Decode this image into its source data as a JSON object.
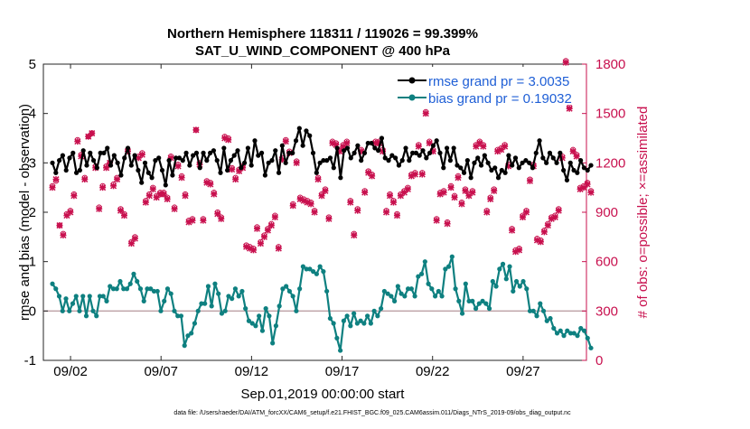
{
  "chart_data": {
    "type": "line",
    "title_line1": "Northern Hemisphere 118311 / 119026 = 99.399%",
    "title_line2": "SAT_U_WIND_COMPONENT @ 400 hPa",
    "ylabel_left": "rmse and bias (model - observation)",
    "ylabel_right": "# of obs: o=possible; ×=assimilated",
    "xlabel": "Sep.01,2019 00:00:00 start",
    "footnote": "data file: /Users/raeder/DAI/ATM_forcXX/CAM6_setup/f.e21.FHIST_BGC.f09_025.CAM6assim.011/Diags_NTrS_2019-09/obs_diag_output.nc",
    "x_range": [
      0.5,
      30.5
    ],
    "x_ticks": [
      2,
      7,
      12,
      17,
      22,
      27
    ],
    "x_tick_labels": [
      "09/02",
      "09/07",
      "09/12",
      "09/17",
      "09/22",
      "09/27"
    ],
    "y_left_range": [
      -1,
      5
    ],
    "y_left_ticks": [
      "-1",
      "0",
      "1",
      "2",
      "3",
      "4",
      "5"
    ],
    "y_right_range": [
      0,
      1800
    ],
    "y_right_ticks": [
      "0",
      "300",
      "600",
      "900",
      "1200",
      "1500",
      "1800"
    ],
    "zero_line": 0,
    "legend": {
      "position": "top-right",
      "entries": [
        "rmse grand pr = 3.0035",
        "bias grand pr = 0.19032"
      ]
    },
    "series": [
      {
        "name": "rmse",
        "axis": "left",
        "color": "#000000",
        "values": [
          3.0,
          2.8,
          3.05,
          3.15,
          2.85,
          3.1,
          3.2,
          2.8,
          2.85,
          3.25,
          2.95,
          3.2,
          3.05,
          2.9,
          3.2,
          3.2,
          3.3,
          2.95,
          3.15,
          3.0,
          2.75,
          3.1,
          3.3,
          2.95,
          3.15,
          2.85,
          2.6,
          3.0,
          2.8,
          2.7,
          3.05,
          3.1,
          2.85,
          2.55,
          3.05,
          2.75,
          3.1,
          3.1,
          3.05,
          3.2,
          2.95,
          3.15,
          3.2,
          2.9,
          3.2,
          3.05,
          3.2,
          3.25,
          3.05,
          2.8,
          3.3,
          2.85,
          3.05,
          3.15,
          3.25,
          2.9,
          3.0,
          3.3,
          2.95,
          3.45,
          3.15,
          3.2,
          2.75,
          3.0,
          3.05,
          3.25,
          2.8,
          3.35,
          3.0,
          3.2,
          3.2,
          3.45,
          3.7,
          3.35,
          3.65,
          3.55,
          3.2,
          2.8,
          3.0,
          3.05,
          3.05,
          3.1,
          2.9,
          3.3,
          2.7,
          3.25,
          3.3,
          3.1,
          3.2,
          3.35,
          3.05,
          3.2,
          3.4,
          3.4,
          3.3,
          3.25,
          3.5,
          3.1,
          3.05,
          3.15,
          3.1,
          2.95,
          3.05,
          3.3,
          3.05,
          3.2,
          3.2,
          3.15,
          3.25,
          3.1,
          3.2,
          3.35,
          3.45,
          3.2,
          2.9,
          3.3,
          3.05,
          3.3,
          2.95,
          2.9,
          2.8,
          3.05,
          2.7,
          3.0,
          3.1,
          2.95,
          3.15,
          3.0,
          2.85,
          2.9,
          2.7,
          2.85,
          2.8,
          3.15,
          2.95,
          3.1,
          2.9,
          3.0,
          3.05,
          3.0,
          2.9,
          3.2,
          3.45,
          3.1,
          3.0,
          3.2,
          3.1,
          3.0,
          3.2,
          2.85,
          2.65,
          3.0,
          2.85,
          2.8,
          3.05,
          2.9,
          2.85,
          2.95
        ]
      },
      {
        "name": "bias",
        "axis": "left",
        "color": "#0e8080",
        "values": [
          0.55,
          0.45,
          0.3,
          0.0,
          0.25,
          0.0,
          0.15,
          0.3,
          0.0,
          0.3,
          -0.1,
          0.3,
          0.0,
          -0.1,
          0.3,
          0.3,
          0.2,
          0.5,
          0.45,
          0.45,
          0.6,
          0.45,
          0.45,
          0.55,
          0.75,
          0.6,
          0.45,
          0.2,
          0.45,
          0.45,
          0.4,
          0.4,
          0.0,
          0.2,
          0.45,
          0.35,
          0.0,
          -0.1,
          -0.1,
          -0.7,
          -0.5,
          -0.45,
          -0.25,
          0.0,
          0.15,
          0.15,
          0.5,
          0.1,
          0.55,
          0.35,
          -0.05,
          0.0,
          0.3,
          0.25,
          0.45,
          0.3,
          0.4,
          0.05,
          -0.2,
          -0.25,
          -0.3,
          -0.1,
          -0.4,
          0.05,
          -0.1,
          -0.65,
          -0.3,
          0.1,
          0.45,
          0.5,
          0.4,
          0.3,
          0.0,
          0.45,
          0.9,
          0.85,
          0.85,
          0.8,
          0.75,
          0.9,
          0.8,
          0.4,
          -0.15,
          -0.25,
          -0.55,
          -0.8,
          -0.2,
          -0.1,
          -0.3,
          -0.05,
          -0.25,
          -0.2,
          -0.25,
          -0.1,
          -0.25,
          0.0,
          -0.1,
          0.05,
          0.4,
          0.35,
          0.3,
          0.2,
          0.5,
          0.35,
          0.3,
          0.45,
          0.45,
          0.3,
          0.7,
          0.75,
          1.0,
          0.55,
          0.45,
          0.3,
          0.4,
          0.3,
          0.85,
          0.9,
          1.1,
          0.45,
          0.2,
          -0.05,
          0.55,
          0.2,
          0.2,
          0.05,
          0.15,
          0.2,
          0.15,
          0.05,
          0.6,
          0.5,
          0.85,
          0.95,
          0.65,
          0.9,
          0.4,
          0.6,
          0.5,
          0.6,
          0.45,
          0.0,
          0.0,
          -0.1,
          0.15,
          0.0,
          -0.2,
          -0.15,
          -0.35,
          -0.45,
          -0.4,
          -0.5,
          -0.4,
          -0.45,
          -0.45,
          -0.5,
          -0.35,
          -0.4,
          -0.55,
          -0.75
        ]
      },
      {
        "name": "obs assimilated",
        "axis": "right",
        "color": "#c8104e",
        "values": [
          1050,
          1100,
          820,
          760,
          880,
          900,
          1000,
          1330,
          1240,
          1100,
          1360,
          1380,
          1170,
          920,
          1050,
          1170,
          1200,
          1060,
          1100,
          910,
          880,
          1270,
          710,
          740,
          1230,
          1250,
          960,
          1000,
          1040,
          990,
          1010,
          1010,
          980,
          1230,
          920,
          1180,
          1110,
          1000,
          840,
          850,
          1400,
          1190,
          850,
          1080,
          1070,
          1010,
          890,
          860,
          1350,
          1340,
          1160,
          1100,
          1150,
          1170,
          690,
          680,
          670,
          800,
          710,
          750,
          790,
          820,
          870,
          680,
          1220,
          1330,
          1260,
          940,
          1200,
          980,
          970,
          960,
          950,
          900,
          1100,
          1000,
          1030,
          860,
          1320,
          1310,
          1270,
          1300,
          1320,
          960,
          760,
          910,
          1270,
          1020,
          1140,
          1120,
          1320,
          1320,
          1270,
          900,
          1000,
          960,
          880,
          1000,
          1020,
          1040,
          1120,
          1130,
          1300,
          1130,
          1500,
          1320,
          1270,
          850,
          1010,
          1020,
          830,
          1050,
          990,
          1110,
          950,
          1030,
          1000,
          1020,
          1300,
          1320,
          1300,
          900,
          980,
          1030,
          1270,
          1280,
          1300,
          1180,
          790,
          660,
          670,
          870,
          900,
          1090,
          1180,
          730,
          720,
          780,
          820,
          860,
          870,
          910,
          1230,
          1810,
          1530,
          1270,
          1240,
          1040,
          1050,
          1070,
          1020
        ]
      },
      {
        "name": "obs possible",
        "axis": "right",
        "color": "#c8104e",
        "values": [
          1060,
          1090,
          820,
          770,
          890,
          910,
          1010,
          1340,
          1250,
          1110,
          1360,
          1380,
          1180,
          930,
          1060,
          1180,
          1200,
          1070,
          1110,
          920,
          890,
          1280,
          720,
          750,
          1240,
          1260,
          970,
          1010,
          1050,
          1000,
          1020,
          1020,
          990,
          1240,
          930,
          1190,
          1120,
          1010,
          850,
          860,
          1400,
          1200,
          860,
          1090,
          1080,
          1020,
          900,
          870,
          1360,
          1350,
          1170,
          1110,
          1160,
          1180,
          700,
          690,
          680,
          810,
          720,
          760,
          800,
          830,
          880,
          690,
          1230,
          1340,
          1270,
          950,
          1210,
          990,
          980,
          970,
          960,
          910,
          1110,
          1010,
          1040,
          870,
          1330,
          1320,
          1280,
          1310,
          1330,
          970,
          770,
          920,
          1280,
          1030,
          1150,
          1130,
          1330,
          1330,
          1280,
          910,
          1010,
          970,
          890,
          1010,
          1030,
          1050,
          1130,
          1140,
          1310,
          1140,
          1510,
          1330,
          1280,
          860,
          1020,
          1030,
          840,
          1060,
          1000,
          1120,
          960,
          1040,
          1010,
          1030,
          1310,
          1330,
          1310,
          910,
          990,
          1040,
          1280,
          1290,
          1310,
          1190,
          800,
          670,
          680,
          880,
          910,
          1100,
          1190,
          740,
          730,
          790,
          830,
          870,
          880,
          920,
          1240,
          1820,
          1540,
          1280,
          1250,
          1050,
          1060,
          1080,
          1030
        ]
      }
    ]
  }
}
